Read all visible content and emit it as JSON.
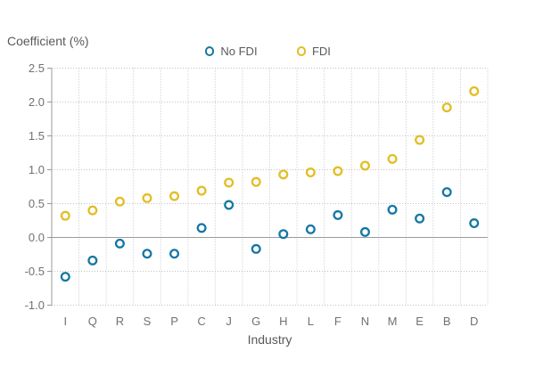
{
  "chart_data": {
    "type": "scatter",
    "title": "Coefficient (%)",
    "xlabel": "Industry",
    "marker_style": "open-circle",
    "grid": true,
    "legend_position": "top",
    "categories": [
      "I",
      "Q",
      "R",
      "S",
      "P",
      "C",
      "J",
      "G",
      "H",
      "L",
      "F",
      "N",
      "M",
      "E",
      "B",
      "D"
    ],
    "series": [
      {
        "name": "No FDI",
        "color": "#1577A3",
        "values": [
          -0.58,
          -0.34,
          -0.09,
          -0.24,
          -0.24,
          0.14,
          0.48,
          -0.17,
          0.05,
          0.12,
          0.33,
          0.08,
          0.41,
          0.28,
          0.67,
          0.21
        ]
      },
      {
        "name": "FDI",
        "color": "#E3BD23",
        "values": [
          0.32,
          0.4,
          0.53,
          0.58,
          0.61,
          0.69,
          0.81,
          0.82,
          0.93,
          0.96,
          0.98,
          1.06,
          1.16,
          1.44,
          1.92,
          2.16
        ]
      }
    ],
    "ylim": [
      -1.0,
      2.5
    ],
    "y_ticks": [
      {
        "label": "2.5",
        "value": 2.5
      },
      {
        "label": "2.0",
        "value": 2.0
      },
      {
        "label": "1.5",
        "value": 1.5
      },
      {
        "label": "1.0",
        "value": 1.0
      },
      {
        "label": "0.5",
        "value": 0.5
      },
      {
        "label": "0.0",
        "value": 0.0
      },
      {
        "label": "-0.5",
        "value": -0.5
      },
      {
        "label": "-1.0",
        "value": -1.0
      }
    ],
    "colors": {
      "grid": "#c2c2c2",
      "axis": "#9b9b9b",
      "tick_text": "#717171",
      "title_text": "#595959"
    }
  }
}
